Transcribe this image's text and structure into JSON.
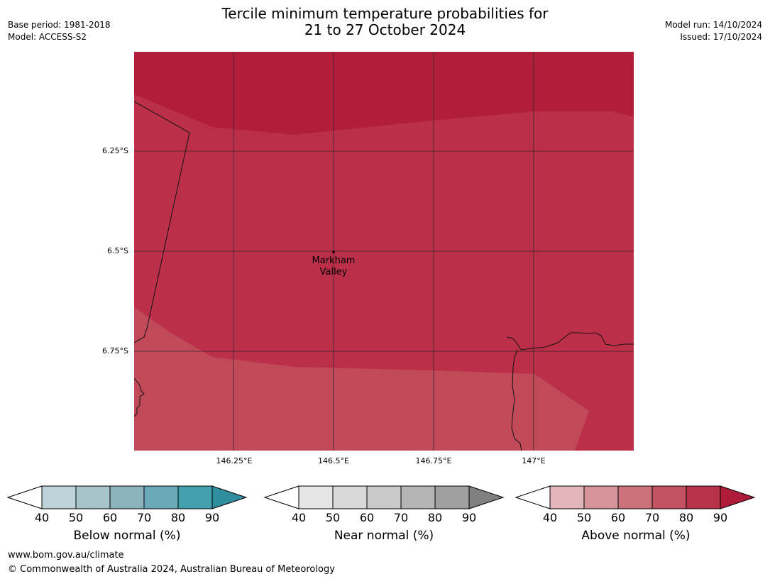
{
  "header": {
    "base_period": "Base period: 1981-2018",
    "model": "Model: ACCESS-S2",
    "title_line1": "Tercile minimum temperature probabilities for",
    "title_line2": "21 to 27 October 2024",
    "model_run": "Model run: 14/10/2024",
    "issued": "Issued: 17/10/2024"
  },
  "map": {
    "place": {
      "name_line1": "Markham",
      "name_line2": "Valley"
    },
    "lat_labels": [
      "6.25°S",
      "6.5°S",
      "6.75°S"
    ],
    "lon_labels": [
      "146.25°E",
      "146.5°E",
      "146.75°E",
      "147°E"
    ],
    "colors": {
      "band_80_90": "#b01e3a",
      "band_70_80": "#bb2f49",
      "band_60_70": "#c04a57"
    }
  },
  "legends": [
    {
      "title": "Below normal (%)",
      "ticks": [
        "40",
        "50",
        "60",
        "70",
        "80",
        "90"
      ],
      "colors": [
        "#bcd4da",
        "#a6c4ca",
        "#8ab3be",
        "#6aa9b8",
        "#44a0ad",
        "#2f8d9d"
      ]
    },
    {
      "title": "Near normal (%)",
      "ticks": [
        "40",
        "50",
        "60",
        "70",
        "80",
        "90"
      ],
      "colors": [
        "#e6e6e6",
        "#d9d9d9",
        "#c9c9c9",
        "#b5b5b5",
        "#a0a0a0",
        "#808080"
      ]
    },
    {
      "title": "Above normal (%)",
      "ticks": [
        "40",
        "50",
        "60",
        "70",
        "80",
        "90"
      ],
      "colors": [
        "#e2b5bb",
        "#d6939a",
        "#cb7379",
        "#c35262",
        "#b8324a",
        "#af1c3b"
      ]
    }
  ],
  "footer": {
    "url": "www.bom.gov.au/climate",
    "copyright": "© Commonwealth of Australia 2024, Australian Bureau of Meteorology"
  }
}
